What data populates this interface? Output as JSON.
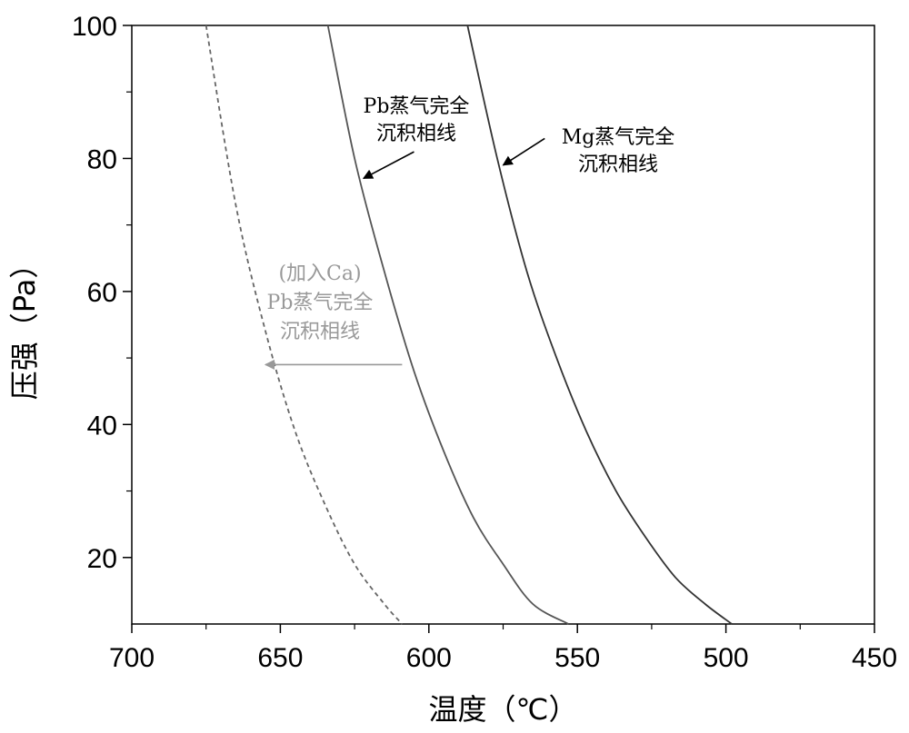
{
  "chart_data": {
    "type": "line",
    "xlabel": "温度（℃）",
    "ylabel": "压强（Pa）",
    "xlim": [
      700,
      450
    ],
    "ylim": [
      10,
      100
    ],
    "x_reversed": true,
    "xticks": [
      700,
      650,
      600,
      550,
      500,
      450
    ],
    "yticks": [
      20,
      40,
      60,
      80,
      100
    ],
    "grid": false,
    "series": [
      {
        "name": "(加入Ca) Pb蒸气完全沉积相线",
        "style": "dashed",
        "color": "#666666",
        "x": [
          675,
          665,
          655,
          645,
          635,
          625,
          615,
          609
        ],
        "y": [
          100,
          73,
          54,
          39,
          28,
          19,
          13,
          10
        ]
      },
      {
        "name": "Pb蒸气完全沉积相线",
        "style": "solid",
        "color": "#555555",
        "x": [
          634,
          625,
          615,
          605,
          595,
          585,
          575,
          565,
          553
        ],
        "y": [
          100,
          80,
          63,
          48,
          36,
          26,
          19,
          13,
          10
        ]
      },
      {
        "name": "Mg蒸气完全沉积相线",
        "style": "solid",
        "color": "#333333",
        "x": [
          587,
          577,
          567,
          557,
          547,
          537,
          527,
          517,
          507,
          498
        ],
        "y": [
          100,
          80,
          63,
          50,
          39,
          30,
          23,
          17,
          13,
          10
        ]
      }
    ],
    "annotations": [
      {
        "lines": [
          "Pb蒸气完全",
          "沉积相线"
        ],
        "color": "#000000",
        "arrow_from": [
          605,
          81
        ],
        "arrow_to": [
          622,
          77
        ]
      },
      {
        "lines": [
          "Mg蒸气完全",
          "沉积相线"
        ],
        "color": "#000000",
        "arrow_from": [
          561,
          83
        ],
        "arrow_to": [
          575,
          79
        ]
      },
      {
        "lines": [
          "(加入Ca)",
          "Pb蒸气完全",
          "沉积相线"
        ],
        "color": "#999999",
        "arrow_from": [
          609,
          49
        ],
        "arrow_to": [
          655,
          49
        ]
      }
    ]
  }
}
